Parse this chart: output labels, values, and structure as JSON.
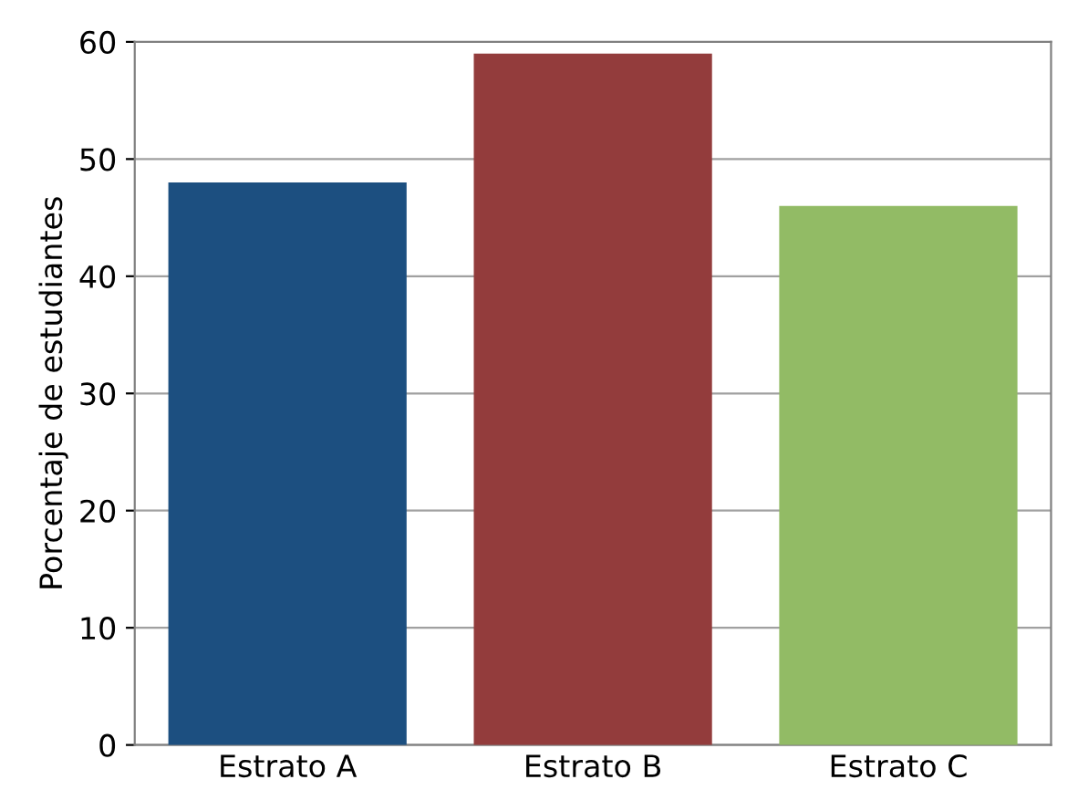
{
  "chart_data": {
    "type": "bar",
    "ylabel": "Porcentaje de estudiantes",
    "categories": [
      "Estrato A",
      "Estrato B",
      "Estrato C"
    ],
    "values": [
      48,
      59,
      46
    ],
    "colors": [
      "#1c4f80",
      "#933c3c",
      "#92bb65"
    ],
    "ylim": [
      0,
      60
    ],
    "yticks": [
      0,
      10,
      20,
      30,
      40,
      50,
      60
    ],
    "grid": "y"
  }
}
